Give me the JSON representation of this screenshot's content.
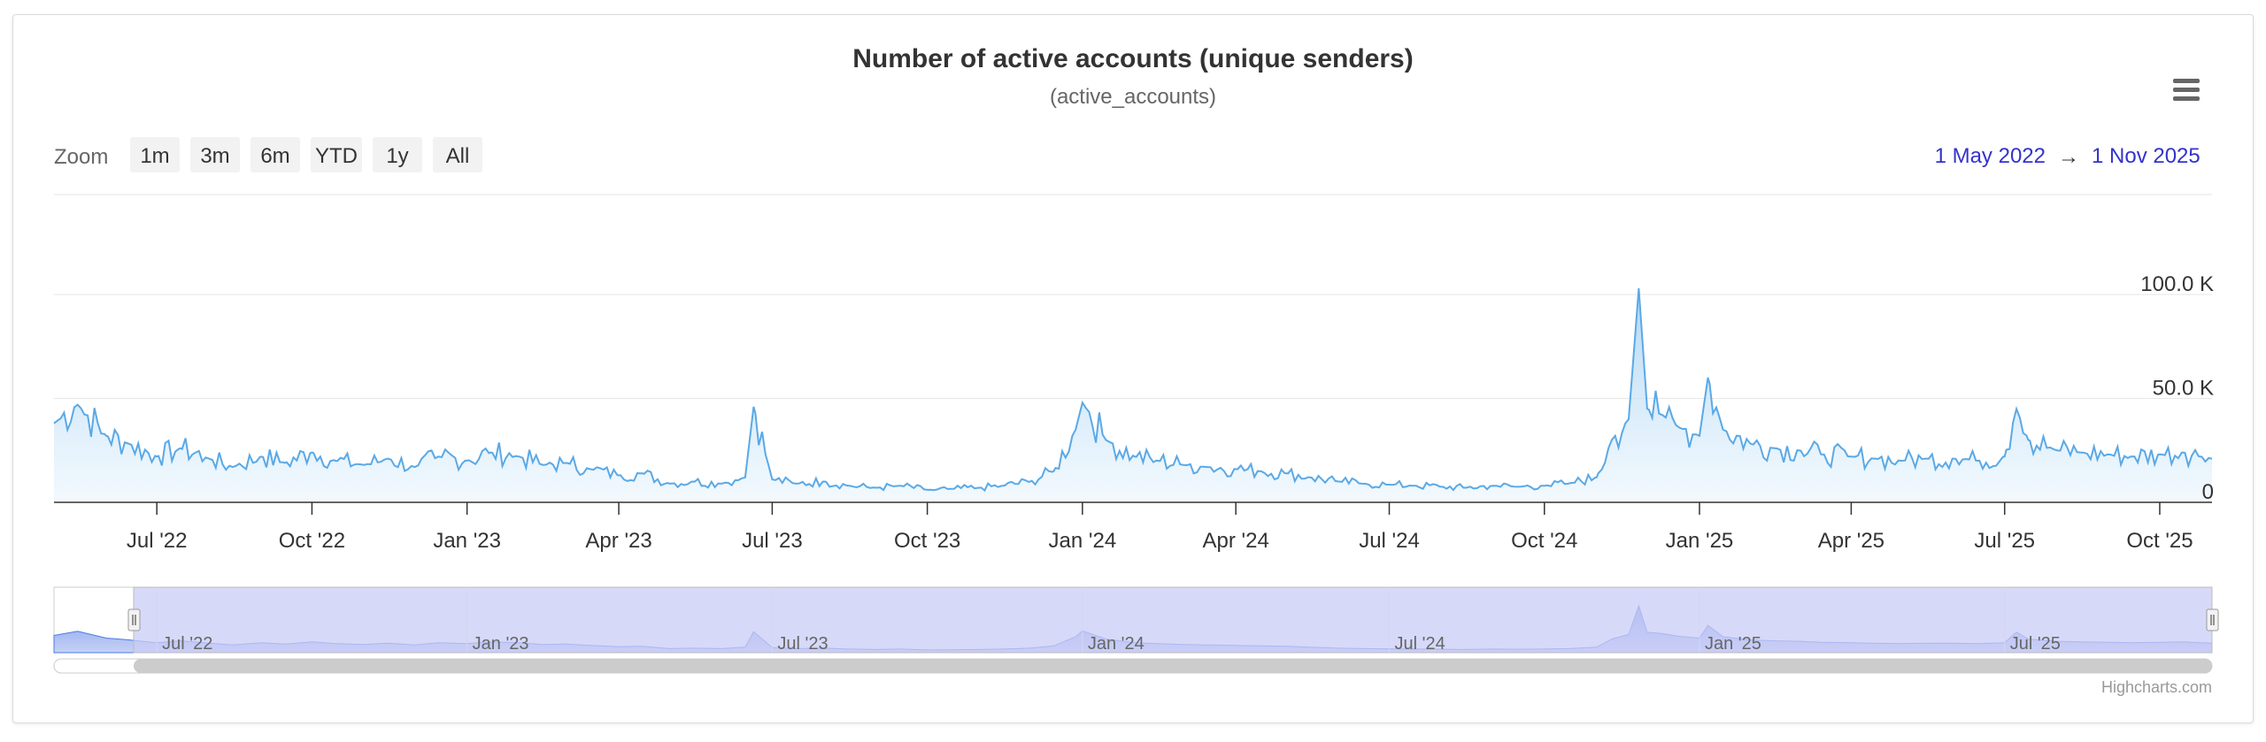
{
  "colors": {
    "series_line": "#5aa9e6",
    "series_fill_top": "#a8d2f3",
    "series_fill_bottom": "#eaf5fd",
    "navigator_mask": "#c9ccf5",
    "navigator_series": "#6f8fe8",
    "range_date": "#3333cc",
    "zoom_button_bg": "#f2f2f2",
    "gridline": "#e6e6e6"
  },
  "menu": {
    "icon": "hamburger-menu-icon"
  },
  "range_selector": {
    "zoom_label": "Zoom",
    "buttons": [
      "1m",
      "3m",
      "6m",
      "YTD",
      "1y",
      "All"
    ],
    "from": "1 May 2022",
    "arrow": "→",
    "to": "1 Nov 2025"
  },
  "navigator": {
    "labels": [
      "Jul '22",
      "Jan '23",
      "Jul '23",
      "Jan '24",
      "Jul '24",
      "Jan '25",
      "Jul '25"
    ]
  },
  "credits": "Highcharts.com",
  "chart_data": {
    "type": "area",
    "title": "Number of active accounts (unique senders)",
    "subtitle": "(active_accounts)",
    "x_range": [
      "2022-05-01",
      "2025-11-01"
    ],
    "ylim": [
      0,
      100000
    ],
    "y_ticks": [
      0,
      50000,
      100000
    ],
    "y_tick_labels": [
      "0",
      "50.0 K",
      "100.0 K"
    ],
    "x_tick_labels": [
      "Jul '22",
      "Oct '22",
      "Jan '23",
      "Apr '23",
      "Jul '23",
      "Oct '23",
      "Jan '24",
      "Apr '24",
      "Jul '24",
      "Oct '24",
      "Jan '25",
      "Apr '25",
      "Jul '25",
      "Oct '25"
    ],
    "x_tick_dates": [
      "2022-07-01",
      "2022-10-01",
      "2023-01-01",
      "2023-04-01",
      "2023-07-01",
      "2023-10-01",
      "2024-01-01",
      "2024-04-01",
      "2024-07-01",
      "2024-10-01",
      "2025-01-01",
      "2025-04-01",
      "2025-07-01",
      "2025-10-01"
    ],
    "grid": true,
    "legend": "none",
    "series": [
      {
        "x": [
          "2022-05-01",
          "2022-05-15",
          "2022-06-01",
          "2022-06-15",
          "2022-07-01",
          "2022-07-15",
          "2022-08-01",
          "2022-08-15",
          "2022-09-01",
          "2022-09-15",
          "2022-10-01",
          "2022-10-15",
          "2022-11-01",
          "2022-11-15",
          "2022-12-01",
          "2022-12-15",
          "2023-01-01",
          "2023-01-15",
          "2023-02-01",
          "2023-02-15",
          "2023-03-01",
          "2023-03-15",
          "2023-04-01",
          "2023-04-15",
          "2023-05-01",
          "2023-05-15",
          "2023-06-01",
          "2023-06-15",
          "2023-06-20",
          "2023-07-01",
          "2023-07-15",
          "2023-08-01",
          "2023-08-15",
          "2023-09-01",
          "2023-09-15",
          "2023-10-01",
          "2023-10-15",
          "2023-11-01",
          "2023-11-15",
          "2023-12-01",
          "2023-12-15",
          "2023-12-28",
          "2024-01-01",
          "2024-01-15",
          "2024-02-01",
          "2024-02-15",
          "2024-03-01",
          "2024-03-15",
          "2024-04-01",
          "2024-04-15",
          "2024-05-01",
          "2024-05-15",
          "2024-06-01",
          "2024-06-15",
          "2024-07-01",
          "2024-07-15",
          "2024-08-01",
          "2024-08-15",
          "2024-09-01",
          "2024-09-15",
          "2024-10-01",
          "2024-10-15",
          "2024-11-01",
          "2024-11-10",
          "2024-11-20",
          "2024-11-26",
          "2024-12-01",
          "2024-12-10",
          "2024-12-20",
          "2025-01-01",
          "2025-01-06",
          "2025-01-15",
          "2025-02-01",
          "2025-02-15",
          "2025-03-01",
          "2025-03-15",
          "2025-04-01",
          "2025-04-15",
          "2025-05-01",
          "2025-05-15",
          "2025-06-01",
          "2025-06-15",
          "2025-07-01",
          "2025-07-08",
          "2025-07-15",
          "2025-08-01",
          "2025-08-15",
          "2025-09-01",
          "2025-09-15",
          "2025-10-01",
          "2025-10-15",
          "2025-10-25",
          "2025-11-01"
        ],
        "values": [
          38000,
          47000,
          32000,
          28000,
          22000,
          26000,
          21000,
          17000,
          22000,
          19000,
          24000,
          20000,
          18000,
          21000,
          17000,
          22000,
          20000,
          24000,
          22000,
          18000,
          19000,
          16000,
          13000,
          14000,
          9000,
          10000,
          9000,
          12000,
          46000,
          11000,
          9000,
          10000,
          8000,
          7000,
          8000,
          6000,
          6500,
          7000,
          8000,
          10000,
          15000,
          35000,
          48000,
          30000,
          22000,
          20000,
          18000,
          17000,
          16000,
          15000,
          14000,
          12000,
          10000,
          9000,
          8500,
          8000,
          7500,
          7000,
          8000,
          7500,
          8000,
          9000,
          12000,
          30000,
          40000,
          103000,
          45000,
          42000,
          36000,
          32000,
          60000,
          35000,
          28000,
          26000,
          25000,
          23000,
          22000,
          21000,
          20000,
          21000,
          21000,
          20000,
          22000,
          45000,
          30000,
          25000,
          24000,
          23000,
          22000,
          23000,
          24000,
          22000,
          21000
        ]
      }
    ]
  }
}
